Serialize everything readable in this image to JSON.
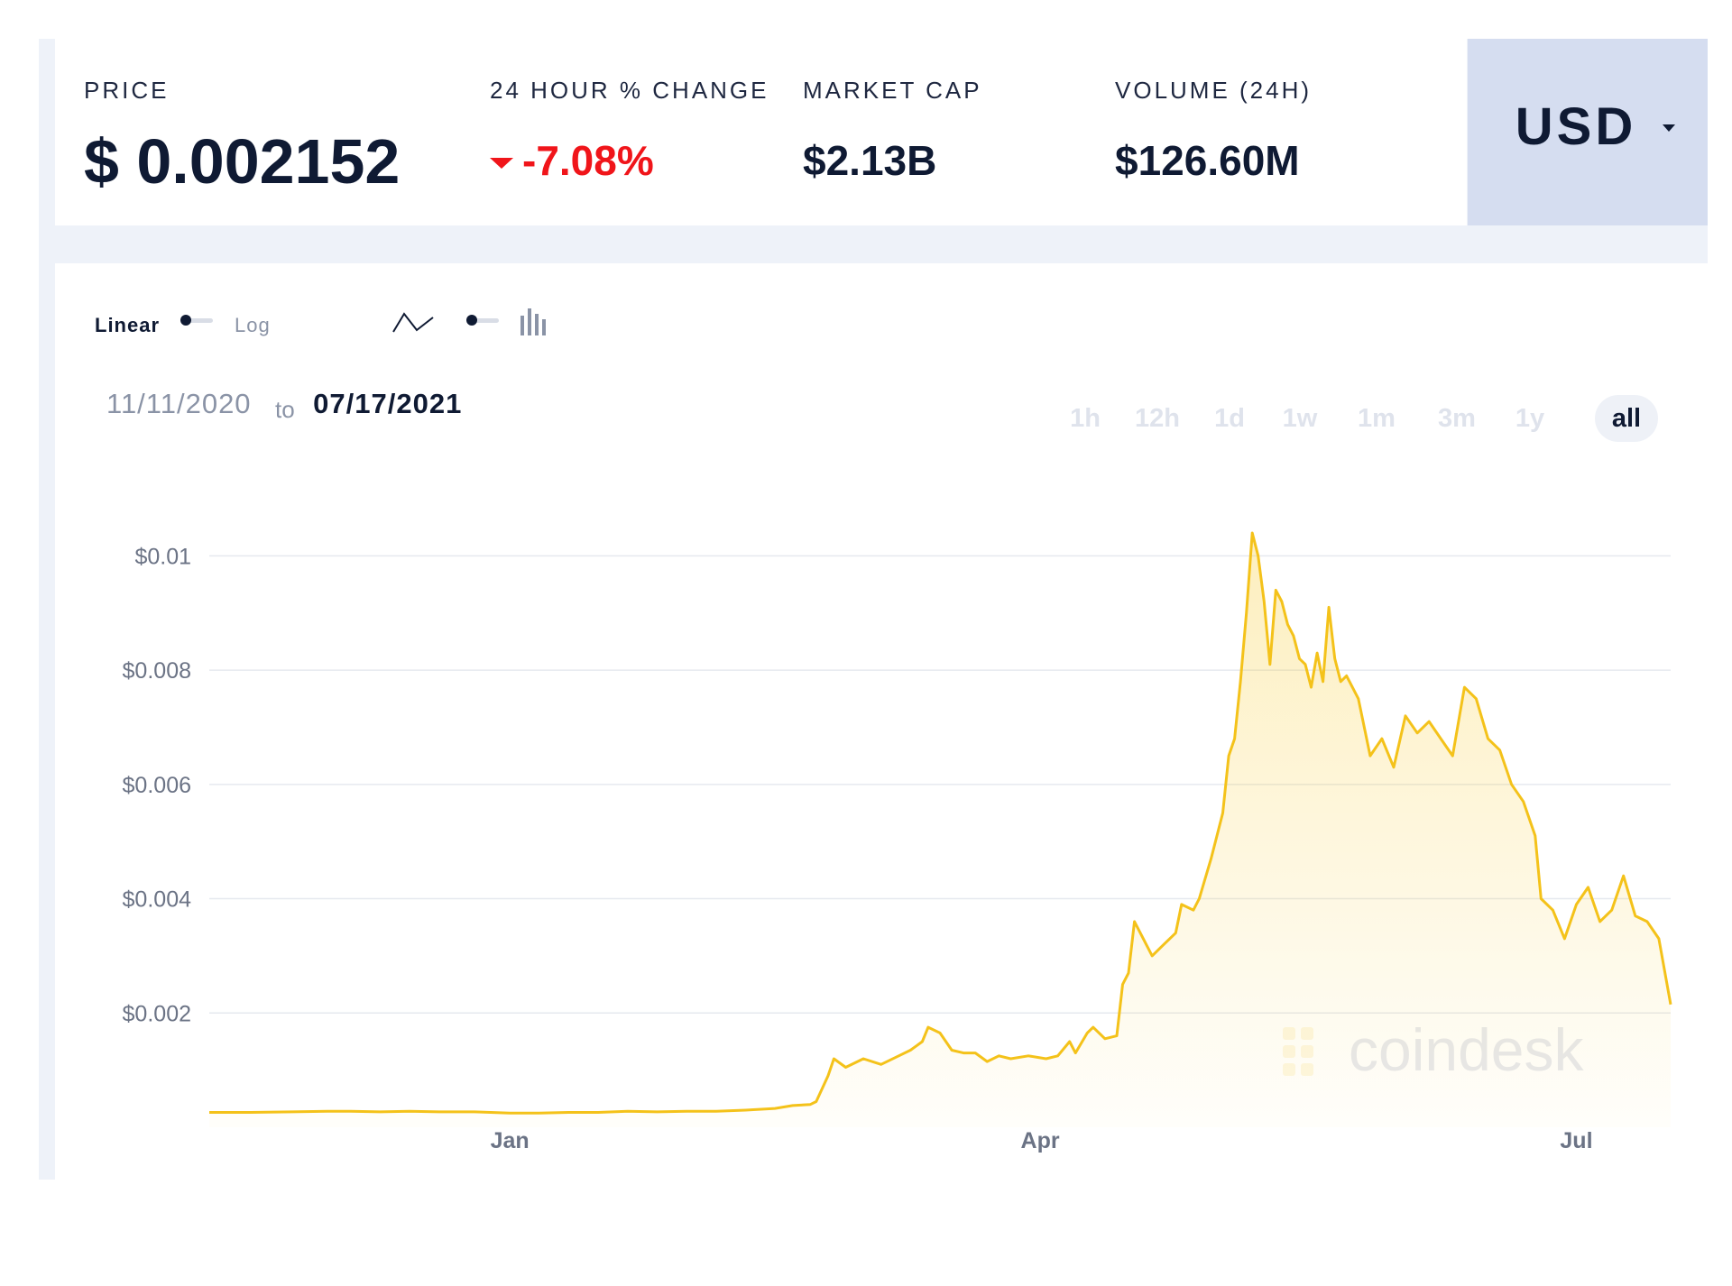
{
  "stats": {
    "price_label": "PRICE",
    "price_value": "$ 0.002152",
    "change_label": "24 HOUR % CHANGE",
    "change_value": "-7.08%",
    "mcap_label": "MARKET CAP",
    "mcap_value": "$2.13B",
    "volume_label": "VOLUME (24H)",
    "volume_value": "$126.60M"
  },
  "currency": {
    "code": "USD"
  },
  "controls": {
    "scale_linear": "Linear",
    "scale_log": "Log",
    "chart_modes": [
      "line-chart-icon",
      "candlestick-icon"
    ]
  },
  "date_range": {
    "from": "11/11/2020",
    "to_word": "to",
    "to": "07/17/2021"
  },
  "ranges": [
    "1h",
    "12h",
    "1d",
    "1w",
    "1m",
    "3m",
    "1y",
    "all"
  ],
  "active_range": "all",
  "watermark": "coindesk",
  "colors": {
    "line": "#f4c21a",
    "down": "#f0151a",
    "text": "#0f1a33",
    "muted": "#8a93a6"
  },
  "chart_data": {
    "type": "area",
    "x_start": "2020-11-11",
    "x_end": "2021-07-17",
    "ylim": [
      0,
      0.0107
    ],
    "y_ticks": [
      0.002,
      0.004,
      0.006,
      0.008,
      0.01
    ],
    "y_tick_labels": [
      "$0.002",
      "$0.004",
      "$0.006",
      "$0.008",
      "$0.01"
    ],
    "x_ticks": [
      "2021-01-01",
      "2021-04-01",
      "2021-07-01"
    ],
    "x_tick_labels": [
      "Jan",
      "Apr",
      "Jul"
    ],
    "grid": true,
    "series": [
      {
        "points": [
          [
            "2020-11-11",
            0.00026
          ],
          [
            "2020-11-18",
            0.00026
          ],
          [
            "2020-11-25",
            0.00027
          ],
          [
            "2020-12-01",
            0.00028
          ],
          [
            "2020-12-05",
            0.00028
          ],
          [
            "2020-12-10",
            0.00027
          ],
          [
            "2020-12-15",
            0.00028
          ],
          [
            "2020-12-20",
            0.00027
          ],
          [
            "2020-12-26",
            0.00027
          ],
          [
            "2021-01-01",
            0.00025
          ],
          [
            "2021-01-06",
            0.00025
          ],
          [
            "2021-01-11",
            0.00026
          ],
          [
            "2021-01-16",
            0.00026
          ],
          [
            "2021-01-21",
            0.00028
          ],
          [
            "2021-01-26",
            0.00027
          ],
          [
            "2021-01-31",
            0.00028
          ],
          [
            "2021-02-05",
            0.00028
          ],
          [
            "2021-02-10",
            0.0003
          ],
          [
            "2021-02-15",
            0.00033
          ],
          [
            "2021-02-18",
            0.00038
          ],
          [
            "2021-02-21",
            0.0004
          ],
          [
            "2021-02-22",
            0.00045
          ],
          [
            "2021-02-24",
            0.0009
          ],
          [
            "2021-02-25",
            0.0012
          ],
          [
            "2021-02-27",
            0.00105
          ],
          [
            "2021-03-02",
            0.0012
          ],
          [
            "2021-03-05",
            0.0011
          ],
          [
            "2021-03-08",
            0.00125
          ],
          [
            "2021-03-10",
            0.00135
          ],
          [
            "2021-03-12",
            0.0015
          ],
          [
            "2021-03-13",
            0.00175
          ],
          [
            "2021-03-15",
            0.00165
          ],
          [
            "2021-03-17",
            0.00135
          ],
          [
            "2021-03-19",
            0.0013
          ],
          [
            "2021-03-21",
            0.0013
          ],
          [
            "2021-03-23",
            0.00115
          ],
          [
            "2021-03-25",
            0.00125
          ],
          [
            "2021-03-27",
            0.0012
          ],
          [
            "2021-03-30",
            0.00125
          ],
          [
            "2021-04-02",
            0.0012
          ],
          [
            "2021-04-04",
            0.00125
          ],
          [
            "2021-04-06",
            0.0015
          ],
          [
            "2021-04-07",
            0.0013
          ],
          [
            "2021-04-09",
            0.00165
          ],
          [
            "2021-04-10",
            0.00175
          ],
          [
            "2021-04-12",
            0.00155
          ],
          [
            "2021-04-14",
            0.0016
          ],
          [
            "2021-04-15",
            0.0025
          ],
          [
            "2021-04-16",
            0.0027
          ],
          [
            "2021-04-17",
            0.0036
          ],
          [
            "2021-04-18",
            0.0034
          ],
          [
            "2021-04-20",
            0.003
          ],
          [
            "2021-04-22",
            0.0032
          ],
          [
            "2021-04-24",
            0.0034
          ],
          [
            "2021-04-25",
            0.0039
          ],
          [
            "2021-04-27",
            0.0038
          ],
          [
            "2021-04-28",
            0.004
          ],
          [
            "2021-04-30",
            0.0047
          ],
          [
            "2021-05-02",
            0.0055
          ],
          [
            "2021-05-03",
            0.0065
          ],
          [
            "2021-05-04",
            0.0068
          ],
          [
            "2021-05-05",
            0.0078
          ],
          [
            "2021-05-06",
            0.009
          ],
          [
            "2021-05-07",
            0.0104
          ],
          [
            "2021-05-08",
            0.01
          ],
          [
            "2021-05-09",
            0.0092
          ],
          [
            "2021-05-10",
            0.0081
          ],
          [
            "2021-05-11",
            0.0094
          ],
          [
            "2021-05-12",
            0.0092
          ],
          [
            "2021-05-13",
            0.0088
          ],
          [
            "2021-05-14",
            0.0086
          ],
          [
            "2021-05-15",
            0.0082
          ],
          [
            "2021-05-16",
            0.0081
          ],
          [
            "2021-05-17",
            0.0077
          ],
          [
            "2021-05-18",
            0.0083
          ],
          [
            "2021-05-19",
            0.0078
          ],
          [
            "2021-05-20",
            0.0091
          ],
          [
            "2021-05-21",
            0.0082
          ],
          [
            "2021-05-22",
            0.0078
          ],
          [
            "2021-05-23",
            0.0079
          ],
          [
            "2021-05-25",
            0.0075
          ],
          [
            "2021-05-27",
            0.0065
          ],
          [
            "2021-05-29",
            0.0068
          ],
          [
            "2021-05-31",
            0.0063
          ],
          [
            "2021-06-02",
            0.0072
          ],
          [
            "2021-06-04",
            0.0069
          ],
          [
            "2021-06-06",
            0.0071
          ],
          [
            "2021-06-08",
            0.0068
          ],
          [
            "2021-06-10",
            0.0065
          ],
          [
            "2021-06-12",
            0.0077
          ],
          [
            "2021-06-14",
            0.0075
          ],
          [
            "2021-06-16",
            0.0068
          ],
          [
            "2021-06-18",
            0.0066
          ],
          [
            "2021-06-20",
            0.006
          ],
          [
            "2021-06-22",
            0.0057
          ],
          [
            "2021-06-24",
            0.0051
          ],
          [
            "2021-06-25",
            0.004
          ],
          [
            "2021-06-27",
            0.0038
          ],
          [
            "2021-06-29",
            0.0033
          ],
          [
            "2021-07-01",
            0.0039
          ],
          [
            "2021-07-03",
            0.0042
          ],
          [
            "2021-07-05",
            0.0036
          ],
          [
            "2021-07-07",
            0.0038
          ],
          [
            "2021-07-09",
            0.0044
          ],
          [
            "2021-07-11",
            0.0037
          ],
          [
            "2021-07-13",
            0.0036
          ],
          [
            "2021-07-15",
            0.0033
          ],
          [
            "2021-07-17",
            0.00215
          ]
        ]
      }
    ]
  }
}
